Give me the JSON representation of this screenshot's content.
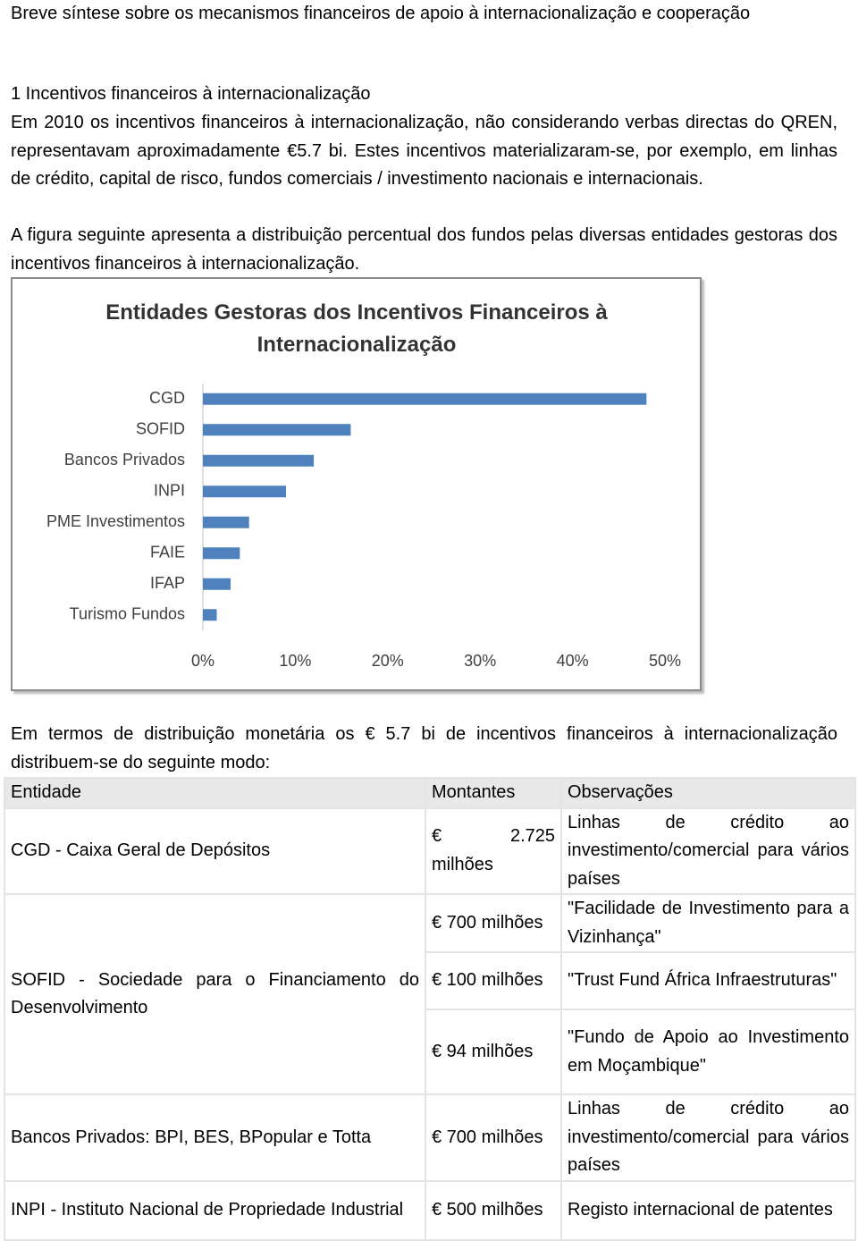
{
  "document": {
    "title": "Breve síntese sobre os mecanismos financeiros de apoio à internacionalização e cooperação",
    "section_heading": "1 Incentivos financeiros à internacionalização",
    "paragraphs": [
      "Em 2010 os incentivos financeiros à internacionalização, não considerando verbas directas do QREN, representavam aproximadamente €5.7 bi. Estes incentivos materializaram-se, por exemplo, em linhas de crédito, capital de risco, fundos comerciais / investimento nacionais e internacionais.",
      "A figura seguinte apresenta a distribuição percentual dos fundos pelas diversas entidades gestoras dos incentivos financeiros à internacionalização.",
      "Em termos de distribuição monetária os € 5.7 bi de incentivos financeiros à internacionalização distribuem-se do seguinte modo:"
    ]
  },
  "chart_data": {
    "type": "barh",
    "title": "Entidades Gestoras dos Incentivos Financeiros à Internacionalização",
    "categories": [
      "CGD",
      "SOFID",
      "Bancos Privados",
      "INPI",
      "PME Investimentos",
      "FAIE",
      "IFAP",
      "Turismo Fundos"
    ],
    "values": [
      48,
      16,
      12,
      9,
      5,
      4,
      3,
      1.5
    ],
    "color": "#4f81bd",
    "xlim": [
      0,
      50
    ],
    "xticks": [
      {
        "value": 0,
        "label": "0%"
      },
      {
        "value": 10,
        "label": "10%"
      },
      {
        "value": 20,
        "label": "20%"
      },
      {
        "value": 30,
        "label": "30%"
      },
      {
        "value": 40,
        "label": "40%"
      },
      {
        "value": 50,
        "label": "50%"
      }
    ],
    "grid": false
  },
  "table": {
    "header": [
      "Entidade",
      "Montantes",
      "Observações"
    ],
    "rows": [
      {
        "entity": "CGD - Caixa Geral de Depósitos",
        "items": [
          {
            "amount": "€ 2.725 milhões",
            "note": "Linhas de crédito ao investimento/comercial para vários países"
          }
        ]
      },
      {
        "entity": "SOFID - Sociedade para o Financiamento do Desenvolvimento",
        "items": [
          {
            "amount": "€ 700 milhões",
            "note": "\"Facilidade de Investimento para a Vizinhança\""
          },
          {
            "amount": "€ 100 milhões",
            "note": "\"Trust Fund África Infraestruturas\""
          },
          {
            "amount": "€ 94 milhões",
            "note": "\"Fundo de Apoio ao Investimento em Moçambique\""
          }
        ]
      },
      {
        "entity": "Bancos Privados: BPI, BES, BPopular e Totta",
        "items": [
          {
            "amount": "€ 700 milhões",
            "note": "Linhas de crédito ao investimento/comercial para vários países"
          }
        ]
      },
      {
        "entity": "INPI - Instituto Nacional de Propriedade Industrial",
        "items": [
          {
            "amount": "€ 500 milhões",
            "note": "Registo internacional de patentes"
          }
        ]
      }
    ]
  }
}
